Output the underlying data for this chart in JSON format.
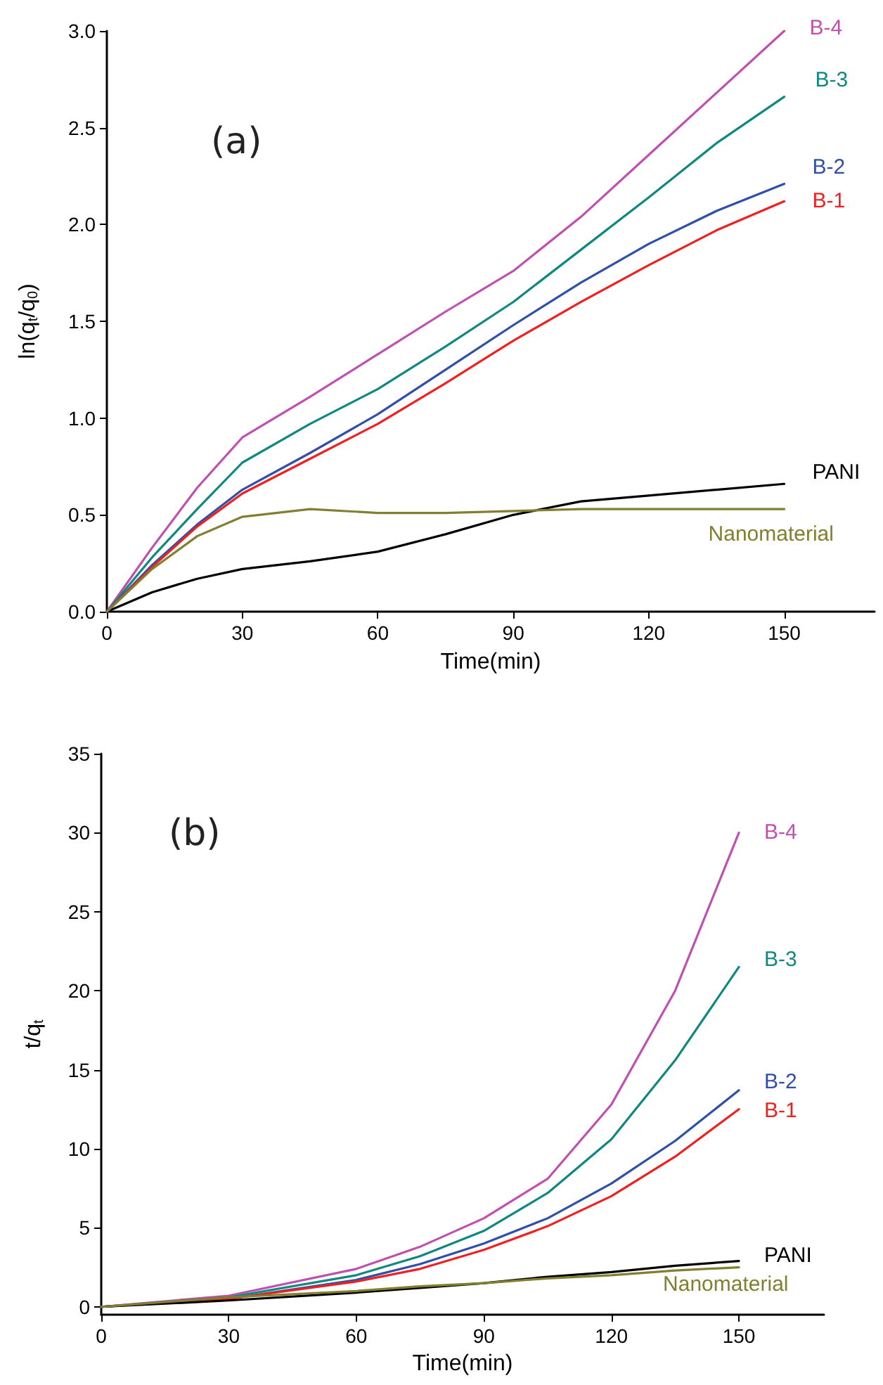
{
  "chart_data": [
    {
      "type": "line",
      "xlabel": "Time(min)",
      "ylabel": "ln(q$_{t}$/q$_{0}$)",
      "annotations": [
        "(a)"
      ],
      "x": [
        0,
        10,
        20,
        30,
        45,
        60,
        75,
        90,
        105,
        120,
        135,
        150
      ],
      "xlim": [
        0,
        170
      ],
      "xticks": [
        0,
        30,
        60,
        90,
        120,
        150
      ],
      "ylim": [
        0,
        3.0
      ],
      "yticks": [
        {
          "value": 0,
          "label": "0.0"
        },
        {
          "value": 0.5,
          "label": "0.5"
        },
        {
          "value": 1,
          "label": "1.0"
        },
        {
          "value": 1.5,
          "label": "1.5"
        },
        {
          "value": 2,
          "label": "2.0"
        },
        {
          "value": 2.5,
          "label": "2.5"
        },
        {
          "value": 3,
          "label": "3.0"
        }
      ],
      "grid": false,
      "legend": false,
      "marker": "none",
      "line_style": "solid",
      "series": [
        {
          "name": "B-4",
          "color": "#c050b0",
          "values": [
            0,
            0.33,
            0.64,
            0.9,
            1.11,
            1.33,
            1.55,
            1.76,
            2.04,
            2.36,
            2.68,
            3.0
          ]
        },
        {
          "name": "B-3",
          "color": "#108880",
          "values": [
            0,
            0.28,
            0.53,
            0.77,
            0.97,
            1.15,
            1.37,
            1.6,
            1.87,
            2.14,
            2.42,
            2.66
          ]
        },
        {
          "name": "B-2",
          "color": "#3050a8",
          "values": [
            0,
            0.24,
            0.45,
            0.63,
            0.82,
            1.02,
            1.25,
            1.48,
            1.7,
            1.9,
            2.07,
            2.21
          ]
        },
        {
          "name": "B-1",
          "color": "#f02020",
          "values": [
            0,
            0.23,
            0.44,
            0.61,
            0.79,
            0.97,
            1.18,
            1.4,
            1.6,
            1.79,
            1.97,
            2.12
          ]
        },
        {
          "name": "PANI",
          "color": "#000000",
          "values": [
            0,
            0.1,
            0.17,
            0.22,
            0.26,
            0.31,
            0.4,
            0.5,
            0.57,
            0.6,
            0.63,
            0.66
          ]
        },
        {
          "name": "Nanomaterial",
          "color": "#808030",
          "values": [
            0,
            0.22,
            0.39,
            0.49,
            0.53,
            0.51,
            0.51,
            0.52,
            0.53,
            0.53,
            0.53,
            0.53
          ]
        }
      ]
    },
    {
      "type": "line",
      "xlabel": "Time(min)",
      "ylabel": "t/q$_{t}$",
      "annotations": [
        "(b)"
      ],
      "x": [
        0,
        30,
        60,
        75,
        90,
        105,
        120,
        135,
        150
      ],
      "xlim": [
        0,
        170
      ],
      "xticks": [
        0,
        30,
        60,
        90,
        120,
        150
      ],
      "ylim": [
        -0.5,
        35
      ],
      "yticks": [
        0,
        5,
        10,
        15,
        20,
        25,
        30,
        35
      ],
      "grid": false,
      "legend": false,
      "marker": "none",
      "line_style": "solid",
      "series": [
        {
          "name": "B-4",
          "color": "#c050b0",
          "values": [
            0,
            0.7,
            2.4,
            3.8,
            5.6,
            8.1,
            12.8,
            20,
            30
          ]
        },
        {
          "name": "B-3",
          "color": "#108880",
          "values": [
            0,
            0.6,
            2.0,
            3.2,
            4.8,
            7.2,
            10.6,
            15.6,
            21.5
          ]
        },
        {
          "name": "B-2",
          "color": "#3050a8",
          "values": [
            0,
            0.5,
            1.7,
            2.7,
            4.0,
            5.6,
            7.8,
            10.5,
            13.7
          ]
        },
        {
          "name": "B-1",
          "color": "#f02020",
          "values": [
            0,
            0.5,
            1.6,
            2.4,
            3.6,
            5.1,
            7.0,
            9.5,
            12.5
          ]
        },
        {
          "name": "PANI",
          "color": "#000000",
          "values": [
            0,
            0.4,
            0.9,
            1.2,
            1.5,
            1.9,
            2.2,
            2.6,
            2.9
          ]
        },
        {
          "name": "Nanomaterial",
          "color": "#808030",
          "values": [
            0,
            0.6,
            1.0,
            1.3,
            1.5,
            1.8,
            2.0,
            2.3,
            2.5
          ]
        }
      ]
    }
  ]
}
